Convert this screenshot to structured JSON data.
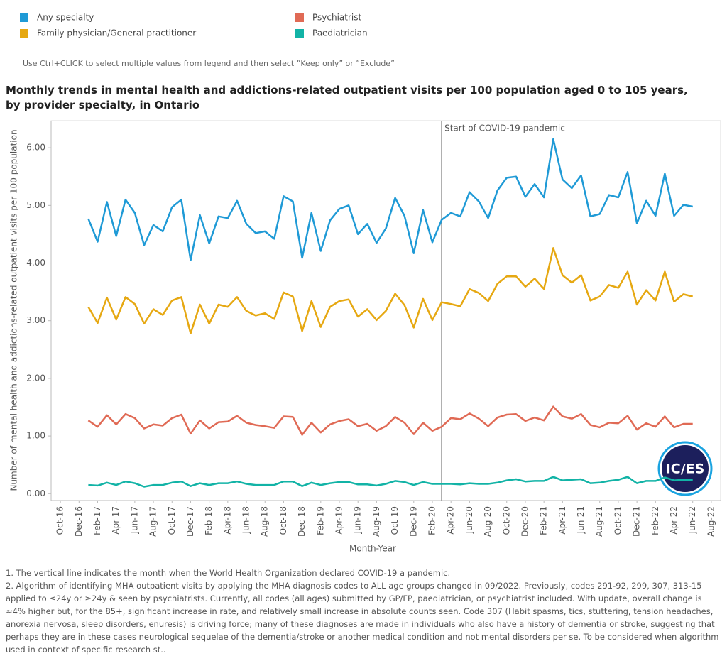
{
  "legend_hint": "Use Ctrl+CLICK to select multiple values from legend and then select ”Keep only” or ”Exclude”",
  "logo": "IC/ES",
  "notes": [
    "1. The vertical line indicates the month when the World Health Organization declared COVID-19 a pandemic.",
    "2. Algorithm of identifying MHA outpatient visits by applying the MHA diagnosis codes to ALL age groups changed in 09/2022. Previously, codes 291-92, 299, 307, 313-15 applied to ≤24y or ≥24y & seen by psychiatrists. Currently, all codes (all ages) submitted by GP/FP, paediatrician, or psychiatrist included. With update, overall change is ≈4% higher but, for the 85+, significant increase in rate, and relatively small increase in absolute counts seen. Code 307 (Habit spasms, tics, stuttering, tension headaches, anorexia nervosa, sleep disorders, enuresis) is driving force; many of these diagnoses are made in individuals who also have a history of dementia or stroke, suggesting that perhaps they are in these cases neurological sequelae of the dementia/stroke or another medical condition and not mental disorders per se.  To be considered when algorithm used in context of specific research st.."
  ],
  "chart_data": {
    "type": "line",
    "title": "Monthly trends in mental health and addictions-related outpatient visits per 100 population aged 0 to 105 years, by provider specialty, in Ontario",
    "x_label": "Month-Year",
    "y_label": "Number of mental health and addictions-related outpatient visits per 100 population",
    "x": [
      "Jan-17",
      "Feb-17",
      "Mar-17",
      "Apr-17",
      "May-17",
      "Jun-17",
      "Jul-17",
      "Aug-17",
      "Sep-17",
      "Oct-17",
      "Nov-17",
      "Dec-17",
      "Jan-18",
      "Feb-18",
      "Mar-18",
      "Apr-18",
      "May-18",
      "Jun-18",
      "Jul-18",
      "Aug-18",
      "Sep-18",
      "Oct-18",
      "Nov-18",
      "Dec-18",
      "Jan-19",
      "Feb-19",
      "Mar-19",
      "Apr-19",
      "May-19",
      "Jun-19",
      "Jul-19",
      "Aug-19",
      "Sep-19",
      "Oct-19",
      "Nov-19",
      "Dec-19",
      "Jan-20",
      "Feb-20",
      "Mar-20",
      "Apr-20",
      "May-20",
      "Jun-20",
      "Jul-20",
      "Aug-20",
      "Sep-20",
      "Oct-20",
      "Nov-20",
      "Dec-20",
      "Jan-21",
      "Feb-21",
      "Mar-21",
      "Apr-21",
      "May-21",
      "Jun-21",
      "Jul-21",
      "Aug-21",
      "Sep-21",
      "Oct-21",
      "Nov-21",
      "Dec-21",
      "Jan-22",
      "Feb-22",
      "Mar-22",
      "Apr-22",
      "May-22",
      "Jun-22"
    ],
    "xlim": [
      "Sep-16",
      "Sep-22"
    ],
    "xticks": [
      "Oct-16",
      "Dec-16",
      "Feb-17",
      "Apr-17",
      "Jun-17",
      "Aug-17",
      "Oct-17",
      "Dec-17",
      "Feb-18",
      "Apr-18",
      "Jun-18",
      "Aug-18",
      "Oct-18",
      "Dec-18",
      "Feb-19",
      "Apr-19",
      "Jun-19",
      "Aug-19",
      "Oct-19",
      "Dec-19",
      "Feb-20",
      "Apr-20",
      "Jun-20",
      "Aug-20",
      "Oct-20",
      "Dec-20",
      "Feb-21",
      "Apr-21",
      "Jun-21",
      "Aug-21",
      "Oct-21",
      "Dec-21",
      "Feb-22",
      "Apr-22",
      "Jun-22",
      "Aug-22"
    ],
    "ylim": [
      -0.12,
      6.47
    ],
    "yticks": [
      {
        "value": 0,
        "label": "0.00"
      },
      {
        "value": 1,
        "label": "1.00"
      },
      {
        "value": 2,
        "label": "2.00"
      },
      {
        "value": 3,
        "label": "3.00"
      },
      {
        "value": 4,
        "label": "4.00"
      },
      {
        "value": 5,
        "label": "5.00"
      },
      {
        "value": 6,
        "label": "6.00"
      }
    ],
    "grid": false,
    "annotation": {
      "x": "Mar-20",
      "text": "Start of COVID-19 pandemic"
    },
    "series": [
      {
        "name": "Any specialty",
        "color": "#1f9ad6",
        "values": [
          4.77,
          4.37,
          5.06,
          4.47,
          5.1,
          4.87,
          4.31,
          4.66,
          4.55,
          4.97,
          5.1,
          4.05,
          4.83,
          4.34,
          4.81,
          4.78,
          5.08,
          4.68,
          4.52,
          4.55,
          4.42,
          5.16,
          5.07,
          4.09,
          4.87,
          4.21,
          4.74,
          4.94,
          5.0,
          4.5,
          4.68,
          4.35,
          4.6,
          5.13,
          4.82,
          4.17,
          4.92,
          4.36,
          4.75,
          4.87,
          4.81,
          5.23,
          5.07,
          4.78,
          5.26,
          5.48,
          5.5,
          5.15,
          5.37,
          5.14,
          6.15,
          5.45,
          5.3,
          5.52,
          4.81,
          4.85,
          5.18,
          5.14,
          5.58,
          4.69,
          5.08,
          4.82,
          5.55,
          4.82,
          5.01,
          4.98
        ]
      },
      {
        "name": "Family physician/General practitioner",
        "color": "#e6a812",
        "values": [
          3.24,
          2.96,
          3.4,
          3.02,
          3.41,
          3.29,
          2.95,
          3.2,
          3.1,
          3.35,
          3.41,
          2.78,
          3.28,
          2.95,
          3.28,
          3.24,
          3.41,
          3.17,
          3.09,
          3.13,
          3.03,
          3.49,
          3.42,
          2.82,
          3.34,
          2.89,
          3.24,
          3.34,
          3.37,
          3.07,
          3.2,
          3.01,
          3.17,
          3.47,
          3.27,
          2.88,
          3.38,
          3.01,
          3.32,
          3.29,
          3.25,
          3.55,
          3.48,
          3.34,
          3.64,
          3.77,
          3.77,
          3.59,
          3.73,
          3.55,
          4.26,
          3.79,
          3.66,
          3.79,
          3.35,
          3.42,
          3.62,
          3.57,
          3.85,
          3.28,
          3.53,
          3.35,
          3.85,
          3.33,
          3.46,
          3.42
        ]
      },
      {
        "name": "Psychiatrist",
        "color": "#e06a55",
        "values": [
          1.27,
          1.16,
          1.36,
          1.2,
          1.38,
          1.31,
          1.13,
          1.2,
          1.18,
          1.31,
          1.37,
          1.04,
          1.27,
          1.13,
          1.24,
          1.25,
          1.35,
          1.23,
          1.19,
          1.17,
          1.14,
          1.34,
          1.33,
          1.02,
          1.23,
          1.06,
          1.2,
          1.26,
          1.29,
          1.17,
          1.21,
          1.09,
          1.17,
          1.33,
          1.23,
          1.03,
          1.23,
          1.09,
          1.16,
          1.31,
          1.29,
          1.39,
          1.3,
          1.17,
          1.32,
          1.37,
          1.38,
          1.26,
          1.32,
          1.27,
          1.51,
          1.34,
          1.3,
          1.38,
          1.19,
          1.15,
          1.23,
          1.22,
          1.35,
          1.11,
          1.22,
          1.16,
          1.34,
          1.15,
          1.21,
          1.21
        ]
      },
      {
        "name": "Paediatrician",
        "color": "#12b3a6",
        "values": [
          0.15,
          0.14,
          0.19,
          0.15,
          0.21,
          0.18,
          0.12,
          0.15,
          0.15,
          0.19,
          0.21,
          0.13,
          0.18,
          0.15,
          0.18,
          0.18,
          0.21,
          0.17,
          0.15,
          0.15,
          0.15,
          0.21,
          0.21,
          0.13,
          0.19,
          0.15,
          0.18,
          0.2,
          0.2,
          0.16,
          0.16,
          0.14,
          0.17,
          0.22,
          0.2,
          0.15,
          0.2,
          0.17,
          0.17,
          0.17,
          0.16,
          0.18,
          0.17,
          0.17,
          0.19,
          0.23,
          0.25,
          0.21,
          0.22,
          0.22,
          0.29,
          0.23,
          0.24,
          0.25,
          0.18,
          0.19,
          0.22,
          0.24,
          0.29,
          0.18,
          0.22,
          0.22,
          0.28,
          0.23,
          0.24,
          0.24
        ]
      }
    ]
  }
}
